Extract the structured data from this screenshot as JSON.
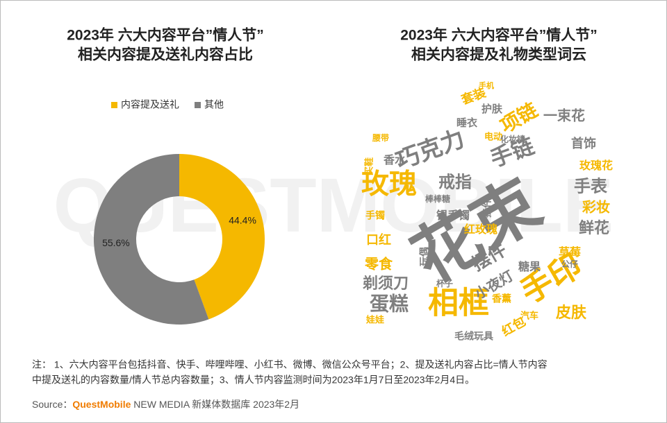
{
  "chart_data": [
    {
      "type": "donut",
      "title": [
        "2023年 六大内容平台”情人节”",
        "相关内容提及送礼内容占比"
      ],
      "categories": [
        "内容提及送礼",
        "其他"
      ],
      "values": [
        44.4,
        55.6
      ],
      "value_labels": [
        "44.4%",
        "55.6%"
      ],
      "colors": [
        "#f5b800",
        "#7f7f7f"
      ],
      "legend": "top"
    },
    {
      "type": "wordcloud",
      "title": [
        "2023年 六大内容平台”情人节”",
        "相关内容提及礼物类型词云"
      ],
      "words": [
        {
          "text": "花束",
          "color": "#7f7f7f"
        },
        {
          "text": "手印",
          "color": "#f5b800"
        },
        {
          "text": "相框",
          "color": "#f5b800"
        },
        {
          "text": "玫瑰",
          "color": "#f5b800"
        },
        {
          "text": "巧克力",
          "color": "#7f7f7f"
        },
        {
          "text": "手链",
          "color": "#7f7f7f"
        },
        {
          "text": "项链",
          "color": "#f5b800"
        },
        {
          "text": "蛋糕",
          "color": "#7f7f7f"
        },
        {
          "text": "戒指",
          "color": "#7f7f7f"
        },
        {
          "text": "摆件",
          "color": "#7f7f7f"
        },
        {
          "text": "手表",
          "color": "#7f7f7f"
        },
        {
          "text": "剃须刀",
          "color": "#7f7f7f"
        },
        {
          "text": "皮肤",
          "color": "#f5b800"
        },
        {
          "text": "鲜花",
          "color": "#7f7f7f"
        },
        {
          "text": "彩妆",
          "color": "#f5b800"
        },
        {
          "text": "一束花",
          "color": "#7f7f7f"
        },
        {
          "text": "零食",
          "color": "#f5b800"
        },
        {
          "text": "小夜灯",
          "color": "#7f7f7f"
        },
        {
          "text": "首饰",
          "color": "#7f7f7f"
        },
        {
          "text": "套装",
          "color": "#f5b800"
        },
        {
          "text": "口红",
          "color": "#f5b800"
        },
        {
          "text": "红包",
          "color": "#f5b800"
        },
        {
          "text": "红玫瑰",
          "color": "#f5b800"
        },
        {
          "text": "银手镯",
          "color": "#7f7f7f"
        },
        {
          "text": "玫瑰花",
          "color": "#f5b800"
        },
        {
          "text": "草莓",
          "color": "#f5b800"
        },
        {
          "text": "糖果",
          "color": "#7f7f7f"
        },
        {
          "text": "香水",
          "color": "#7f7f7f"
        },
        {
          "text": "护肤",
          "color": "#7f7f7f"
        },
        {
          "text": "睡衣",
          "color": "#7f7f7f"
        },
        {
          "text": "毛绒玩具",
          "color": "#7f7f7f"
        },
        {
          "text": "玩偶",
          "color": "#7f7f7f"
        },
        {
          "text": "挂件",
          "color": "#7f7f7f"
        },
        {
          "text": "香薰",
          "color": "#f5b800"
        },
        {
          "text": "手镯",
          "color": "#f5b800"
        },
        {
          "text": "娃娃",
          "color": "#f5b800"
        },
        {
          "text": "电动",
          "color": "#f5b800"
        },
        {
          "text": "汽车",
          "color": "#f5b800"
        },
        {
          "text": "杯子",
          "color": "#7f7f7f"
        },
        {
          "text": "买鞋",
          "color": "#f5b800"
        },
        {
          "text": "腰带",
          "color": "#f5b800"
        },
        {
          "text": "化妆镜",
          "color": "#7f7f7f"
        },
        {
          "text": "手机",
          "color": "#f5b800"
        },
        {
          "text": "公仔",
          "color": "#7f7f7f"
        },
        {
          "text": "棒棒糖",
          "color": "#7f7f7f"
        }
      ]
    }
  ],
  "watermark": "QUESTMOBILE",
  "note": [
    "注：  1、六大内容平台包括抖音、快手、哔哩哔哩、小红书、微博、微信公众号平台；2、提及送礼内容占比=情人节内容",
    "中提及送礼的内容数量/情人节总内容数量；3、情人节内容监测时间为2023年1月7日至2023年2月4日。"
  ],
  "source": {
    "label": "Source：",
    "brand": "QuestMobile",
    "rest": " NEW MEDIA 新媒体数据库 2023年2月"
  }
}
